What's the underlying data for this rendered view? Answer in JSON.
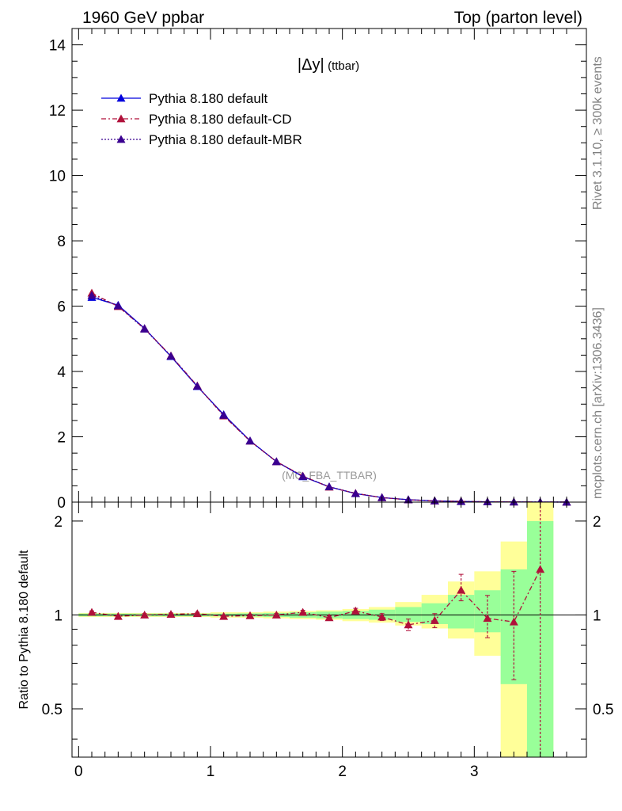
{
  "header": {
    "left": "1960 GeV ppbar",
    "right": "Top (parton level)"
  },
  "side_labels": {
    "rivet": "Rivet 3.1.10, ≥ 300k events",
    "mcplots": "mcplots.cern.ch [arXiv:1306.3436]"
  },
  "watermark": "(MC_FBA_TTBAR)",
  "colors": {
    "default": "#0000dd",
    "cd": "#b0103a",
    "mbr": "#3a0090",
    "band_yellow": "#ffff99",
    "band_green": "#99ff99"
  },
  "chart_data": [
    {
      "type": "line",
      "panel": "main",
      "title": "|Δy| (ttbar)",
      "title_main": "|Δy|",
      "title_sub": "(ttbar)",
      "xlim": [
        -0.05,
        3.85
      ],
      "ylim": [
        0,
        14.5
      ],
      "xticks": [
        0,
        1,
        2,
        3
      ],
      "yticks": [
        0,
        2,
        4,
        6,
        8,
        10,
        12,
        14
      ],
      "legend": "top-left",
      "x": [
        0.1,
        0.3,
        0.5,
        0.7,
        0.9,
        1.1,
        1.3,
        1.5,
        1.7,
        1.9,
        2.1,
        2.3,
        2.5,
        2.7,
        2.9,
        3.1,
        3.3,
        3.5,
        3.7
      ],
      "series": [
        {
          "name": "Pythia 8.180 default",
          "key": "default",
          "marker": "triangle",
          "dash": "none",
          "values": [
            6.27,
            6.03,
            5.32,
            4.46,
            3.54,
            2.68,
            1.88,
            1.24,
            0.78,
            0.47,
            0.26,
            0.14,
            0.075,
            0.04,
            0.02,
            0.01,
            0.006,
            0.003,
            0.001
          ]
        },
        {
          "name": "Pythia 8.180 default-CD",
          "key": "cd",
          "marker": "triangle",
          "dash": "6,3,2,3",
          "values": [
            6.4,
            5.99,
            5.31,
            4.48,
            3.56,
            2.64,
            1.87,
            1.24,
            0.8,
            0.46,
            0.27,
            0.137,
            0.07,
            0.038,
            0.024,
            0.01,
            0.006,
            0.004,
            0.001
          ]
        },
        {
          "name": "Pythia 8.180 default-MBR",
          "key": "mbr",
          "marker": "triangle",
          "dash": "2,2",
          "values": [
            6.33,
            6.01,
            5.3,
            4.47,
            3.55,
            2.66,
            1.87,
            1.24,
            0.79,
            0.47,
            0.265,
            0.14,
            0.072,
            0.039,
            0.022,
            0.01,
            0.006,
            0.003,
            0.001
          ]
        }
      ]
    },
    {
      "type": "line",
      "panel": "ratio",
      "ylabel": "Ratio to Pythia 8.180 default",
      "xlim": [
        -0.05,
        3.85
      ],
      "ylim": [
        0.35,
        2.3
      ],
      "xticks": [
        0,
        1,
        2,
        3
      ],
      "yticks": [
        0.5,
        1,
        2
      ],
      "ytick_labels": [
        "0.5",
        "1",
        "2"
      ],
      "bands": {
        "x_edges": [
          0.0,
          0.2,
          0.4,
          0.6,
          0.8,
          1.0,
          1.2,
          1.4,
          1.6,
          1.8,
          2.0,
          2.2,
          2.4,
          2.6,
          2.8,
          3.0,
          3.2,
          3.4,
          3.6
        ],
        "yellow_lo": [
          0.985,
          0.985,
          0.985,
          0.985,
          0.985,
          0.98,
          0.98,
          0.975,
          0.97,
          0.965,
          0.955,
          0.945,
          0.925,
          0.905,
          0.84,
          0.74,
          0.35,
          0.35
        ],
        "yellow_hi": [
          1.015,
          1.015,
          1.015,
          1.015,
          1.015,
          1.02,
          1.02,
          1.025,
          1.03,
          1.035,
          1.045,
          1.06,
          1.1,
          1.16,
          1.28,
          1.38,
          1.72,
          2.3
        ],
        "green_lo": [
          0.99,
          0.99,
          0.99,
          0.99,
          0.99,
          0.99,
          0.988,
          0.985,
          0.98,
          0.975,
          0.97,
          0.965,
          0.95,
          0.935,
          0.905,
          0.88,
          0.6,
          0.35
        ],
        "green_hi": [
          1.01,
          1.01,
          1.01,
          1.01,
          1.01,
          1.01,
          1.012,
          1.015,
          1.02,
          1.025,
          1.03,
          1.04,
          1.06,
          1.09,
          1.16,
          1.2,
          1.4,
          2.0
        ]
      },
      "x": [
        0.1,
        0.3,
        0.5,
        0.7,
        0.9,
        1.1,
        1.3,
        1.5,
        1.7,
        1.9,
        2.1,
        2.3,
        2.5,
        2.7,
        2.9,
        3.1,
        3.3,
        3.5
      ],
      "series": [
        {
          "name": "Pythia 8.180 default-CD",
          "key": "cd",
          "marker": "triangle",
          "dash": "6,3,2,3",
          "values": [
            1.02,
            0.99,
            1.0,
            1.005,
            1.01,
            0.99,
            0.995,
            1.0,
            1.02,
            0.98,
            1.03,
            0.985,
            0.93,
            0.96,
            1.2,
            0.975,
            0.95,
            1.4
          ],
          "err_lo": [
            0.01,
            0.01,
            0.01,
            0.01,
            0.01,
            0.01,
            0.01,
            0.01,
            0.015,
            0.015,
            0.02,
            0.025,
            0.04,
            0.05,
            0.09,
            0.13,
            0.33,
            1.1
          ],
          "err_hi": [
            0.01,
            0.01,
            0.01,
            0.01,
            0.01,
            0.01,
            0.01,
            0.01,
            0.015,
            0.015,
            0.02,
            0.025,
            0.04,
            0.05,
            0.15,
            0.18,
            0.43,
            0.9
          ]
        }
      ]
    }
  ]
}
